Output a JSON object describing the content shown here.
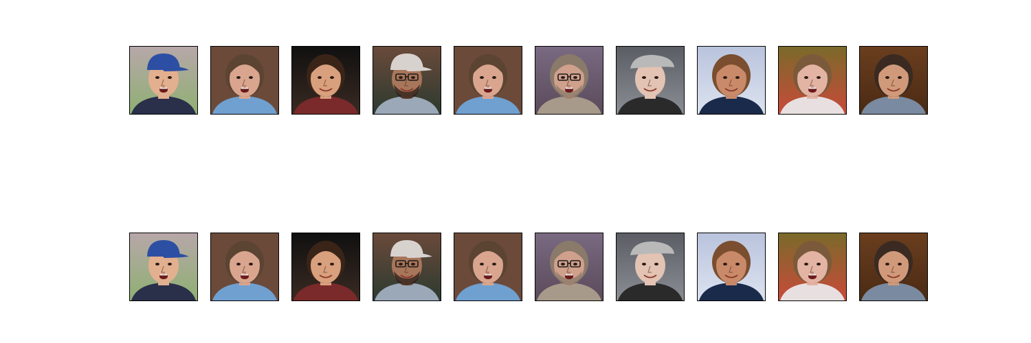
{
  "figure": {
    "rows": [
      {
        "name": "top-row",
        "tiles": [
          {
            "id": "child-blue-cap",
            "bg": "#b7a7a9",
            "bg2": "#8fb072",
            "skin": "#e2b08f",
            "hair": "#4a2f22",
            "headwear": "cap",
            "hat": "#2d4fa3",
            "shirt": "#2a2f4a",
            "glasses": false,
            "beard": false,
            "mouth_open": true
          },
          {
            "id": "crying-toddler",
            "bg": "#6b4a3a",
            "bg2": "#6b4a3a",
            "skin": "#d9a58e",
            "hair": "#5b4432",
            "headwear": "none",
            "hat": "",
            "shirt": "#6fa0d0",
            "glasses": false,
            "beard": false,
            "mouth_open": true
          },
          {
            "id": "smiling-woman",
            "bg": "#101010",
            "bg2": "#3a2a22",
            "skin": "#d9a07e",
            "hair": "#3a2418",
            "headwear": "none",
            "hat": "",
            "shirt": "#7a2a2a",
            "glasses": false,
            "beard": false,
            "mouth_open": false
          },
          {
            "id": "man-white-cap-glasses",
            "bg": "#6a4a3a",
            "bg2": "#2c3a30",
            "skin": "#a8765a",
            "hair": "#2a1e18",
            "headwear": "cap",
            "hat": "#d8d2cf",
            "shirt": "#9aa8b8",
            "glasses": true,
            "beard": true,
            "mouth_open": false
          },
          {
            "id": "crying-toddler-repeat",
            "bg": "#6b4a3a",
            "bg2": "#6b4a3a",
            "skin": "#d9a58e",
            "hair": "#5b4432",
            "headwear": "none",
            "hat": "",
            "shirt": "#6fa0d0",
            "glasses": false,
            "beard": false,
            "mouth_open": true
          },
          {
            "id": "man-glasses-grey-beard",
            "bg": "#7a6a82",
            "bg2": "#5a4a5a",
            "skin": "#cfa08c",
            "hair": "#8a7a6a",
            "headwear": "none",
            "hat": "",
            "shirt": "#a89a8a",
            "glasses": true,
            "beard": true,
            "mouth_open": true
          },
          {
            "id": "old-man-flat-cap",
            "bg": "#5a5e64",
            "bg2": "#8a8e94",
            "skin": "#e3c3b3",
            "hair": "#e8e8e8",
            "headwear": "flatcap",
            "hat": "#b9b9b9",
            "shirt": "#2a2a2a",
            "glasses": false,
            "beard": false,
            "mouth_open": false
          },
          {
            "id": "man-headset-mic",
            "bg": "#b9c3dc",
            "bg2": "#dce3f0",
            "skin": "#c98a6a",
            "hair": "#7a4e2e",
            "headwear": "none",
            "hat": "",
            "shirt": "#1a2a4a",
            "glasses": false,
            "beard": false,
            "mouth_open": false
          },
          {
            "id": "surprised-woman",
            "bg": "#7a6a2a",
            "bg2": "#c94a3a",
            "skin": "#e3b3a3",
            "hair": "#7a5a3a",
            "headwear": "none",
            "hat": "",
            "shirt": "#e8e0e0",
            "glasses": false,
            "beard": false,
            "mouth_open": true
          },
          {
            "id": "man-profile-wood",
            "bg": "#6a3e1e",
            "bg2": "#4a2a14",
            "skin": "#d09a7a",
            "hair": "#3a2a22",
            "headwear": "none",
            "hat": "",
            "shirt": "#7a8aa0",
            "glasses": false,
            "beard": false,
            "mouth_open": false
          }
        ]
      },
      {
        "name": "bottom-row",
        "tiles": [
          {
            "id": "child-blue-cap",
            "bg": "#b7a7a9",
            "bg2": "#8fb072",
            "skin": "#e2b08f",
            "hair": "#4a2f22",
            "headwear": "cap",
            "hat": "#2d4fa3",
            "shirt": "#2a2f4a",
            "glasses": false,
            "beard": false,
            "mouth_open": true
          },
          {
            "id": "crying-toddler",
            "bg": "#6b4a3a",
            "bg2": "#6b4a3a",
            "skin": "#d9a58e",
            "hair": "#5b4432",
            "headwear": "none",
            "hat": "",
            "shirt": "#6fa0d0",
            "glasses": false,
            "beard": false,
            "mouth_open": true
          },
          {
            "id": "smiling-woman",
            "bg": "#101010",
            "bg2": "#3a2a22",
            "skin": "#d9a07e",
            "hair": "#3a2418",
            "headwear": "none",
            "hat": "",
            "shirt": "#7a2a2a",
            "glasses": false,
            "beard": false,
            "mouth_open": false
          },
          {
            "id": "man-white-cap-glasses",
            "bg": "#6a4a3a",
            "bg2": "#2c3a30",
            "skin": "#a8765a",
            "hair": "#2a1e18",
            "headwear": "cap",
            "hat": "#d8d2cf",
            "shirt": "#9aa8b8",
            "glasses": true,
            "beard": true,
            "mouth_open": false
          },
          {
            "id": "crying-toddler-repeat",
            "bg": "#6b4a3a",
            "bg2": "#6b4a3a",
            "skin": "#d9a58e",
            "hair": "#5b4432",
            "headwear": "none",
            "hat": "",
            "shirt": "#6fa0d0",
            "glasses": false,
            "beard": false,
            "mouth_open": true
          },
          {
            "id": "man-glasses-grey-beard",
            "bg": "#7a6a82",
            "bg2": "#5a4a5a",
            "skin": "#cfa08c",
            "hair": "#8a7a6a",
            "headwear": "none",
            "hat": "",
            "shirt": "#a89a8a",
            "glasses": true,
            "beard": true,
            "mouth_open": true
          },
          {
            "id": "old-man-flat-cap",
            "bg": "#5a5e64",
            "bg2": "#8a8e94",
            "skin": "#e3c3b3",
            "hair": "#e8e8e8",
            "headwear": "flatcap",
            "hat": "#b9b9b9",
            "shirt": "#2a2a2a",
            "glasses": false,
            "beard": false,
            "mouth_open": false
          },
          {
            "id": "man-headset-mic",
            "bg": "#b9c3dc",
            "bg2": "#dce3f0",
            "skin": "#c98a6a",
            "hair": "#7a4e2e",
            "headwear": "none",
            "hat": "",
            "shirt": "#1a2a4a",
            "glasses": false,
            "beard": false,
            "mouth_open": false
          },
          {
            "id": "surprised-woman",
            "bg": "#7a6a2a",
            "bg2": "#c94a3a",
            "skin": "#e3b3a3",
            "hair": "#7a5a3a",
            "headwear": "none",
            "hat": "",
            "shirt": "#e8e0e0",
            "glasses": false,
            "beard": false,
            "mouth_open": true
          },
          {
            "id": "man-profile-wood",
            "bg": "#6a3e1e",
            "bg2": "#4a2a14",
            "skin": "#d09a7a",
            "hair": "#3a2a22",
            "headwear": "none",
            "hat": "",
            "shirt": "#7a8aa0",
            "glasses": false,
            "beard": false,
            "mouth_open": false
          }
        ]
      }
    ]
  }
}
